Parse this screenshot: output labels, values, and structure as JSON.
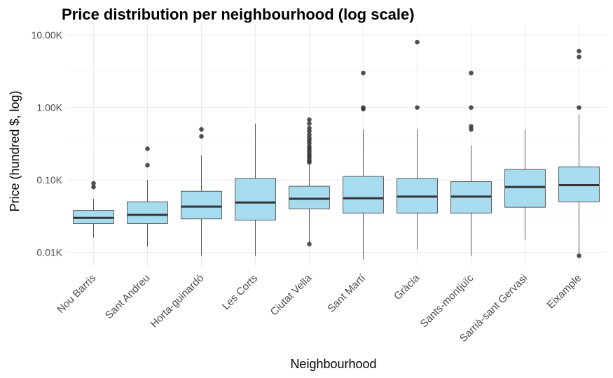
{
  "chart_data": {
    "type": "box",
    "title": "Price distribution per neighbourhood (log scale)",
    "xlabel": "Neighbourhood",
    "ylabel": "Price (hundred $, log)",
    "y_scale": "log10",
    "y_ticks": [
      {
        "value": 0.01,
        "label": "0.01K"
      },
      {
        "value": 0.1,
        "label": "0.10K"
      },
      {
        "value": 1,
        "label": "1.00K"
      },
      {
        "value": 10,
        "label": "10.00K"
      }
    ],
    "ylim": [
      0.0065,
      14
    ],
    "grid": true,
    "box_color": "#a7dcef",
    "categories": [
      "Nou Barris",
      "Sant Andreu",
      "Horta-guinardó",
      "Les Corts",
      "Ciutat Vella",
      "Sant Martí",
      "Gràcia",
      "Sants-montjuïc",
      "Sarrià-sant Gervasi",
      "Eixample"
    ],
    "boxes": [
      {
        "name": "Nou Barris",
        "whisker_low": 0.016,
        "q1": 0.025,
        "median": 0.03,
        "q3": 0.038,
        "whisker_high": 0.055,
        "outliers": [
          0.08,
          0.09
        ]
      },
      {
        "name": "Sant Andreu",
        "whisker_low": 0.012,
        "q1": 0.025,
        "median": 0.033,
        "q3": 0.05,
        "whisker_high": 0.1,
        "outliers": [
          0.16,
          0.27
        ]
      },
      {
        "name": "Horta-guinardó",
        "whisker_low": 0.009,
        "q1": 0.029,
        "median": 0.043,
        "q3": 0.07,
        "whisker_high": 0.22,
        "outliers": [
          0.4,
          0.5
        ]
      },
      {
        "name": "Les Corts",
        "whisker_low": 0.009,
        "q1": 0.028,
        "median": 0.049,
        "q3": 0.105,
        "whisker_high": 0.6,
        "outliers": []
      },
      {
        "name": "Ciutat Vella",
        "whisker_low": 0.013,
        "q1": 0.04,
        "median": 0.055,
        "q3": 0.082,
        "whisker_high": 0.17,
        "outliers": [
          0.013,
          0.175,
          0.185,
          0.2,
          0.215,
          0.23,
          0.25,
          0.27,
          0.29,
          0.32,
          0.35,
          0.38,
          0.42,
          0.47,
          0.52,
          0.6,
          0.68
        ]
      },
      {
        "name": "Sant Martí",
        "whisker_low": 0.008,
        "q1": 0.035,
        "median": 0.056,
        "q3": 0.112,
        "whisker_high": 0.5,
        "outliers": [
          0.95,
          1.0,
          3.0
        ]
      },
      {
        "name": "Gràcia",
        "whisker_low": 0.011,
        "q1": 0.035,
        "median": 0.059,
        "q3": 0.105,
        "whisker_high": 0.5,
        "outliers": [
          1.0,
          8.0
        ]
      },
      {
        "name": "Sants-montjuïc",
        "whisker_low": 0.009,
        "q1": 0.035,
        "median": 0.059,
        "q3": 0.095,
        "whisker_high": 0.3,
        "outliers": [
          0.5,
          0.55,
          1.0,
          3.0
        ]
      },
      {
        "name": "Sarrià-sant Gervasi",
        "whisker_low": 0.015,
        "q1": 0.042,
        "median": 0.08,
        "q3": 0.14,
        "whisker_high": 0.5,
        "outliers": []
      },
      {
        "name": "Eixample",
        "whisker_low": 0.009,
        "q1": 0.05,
        "median": 0.085,
        "q3": 0.152,
        "whisker_high": 0.8,
        "outliers": [
          0.009,
          1.0,
          5.0,
          6.0
        ]
      }
    ]
  }
}
